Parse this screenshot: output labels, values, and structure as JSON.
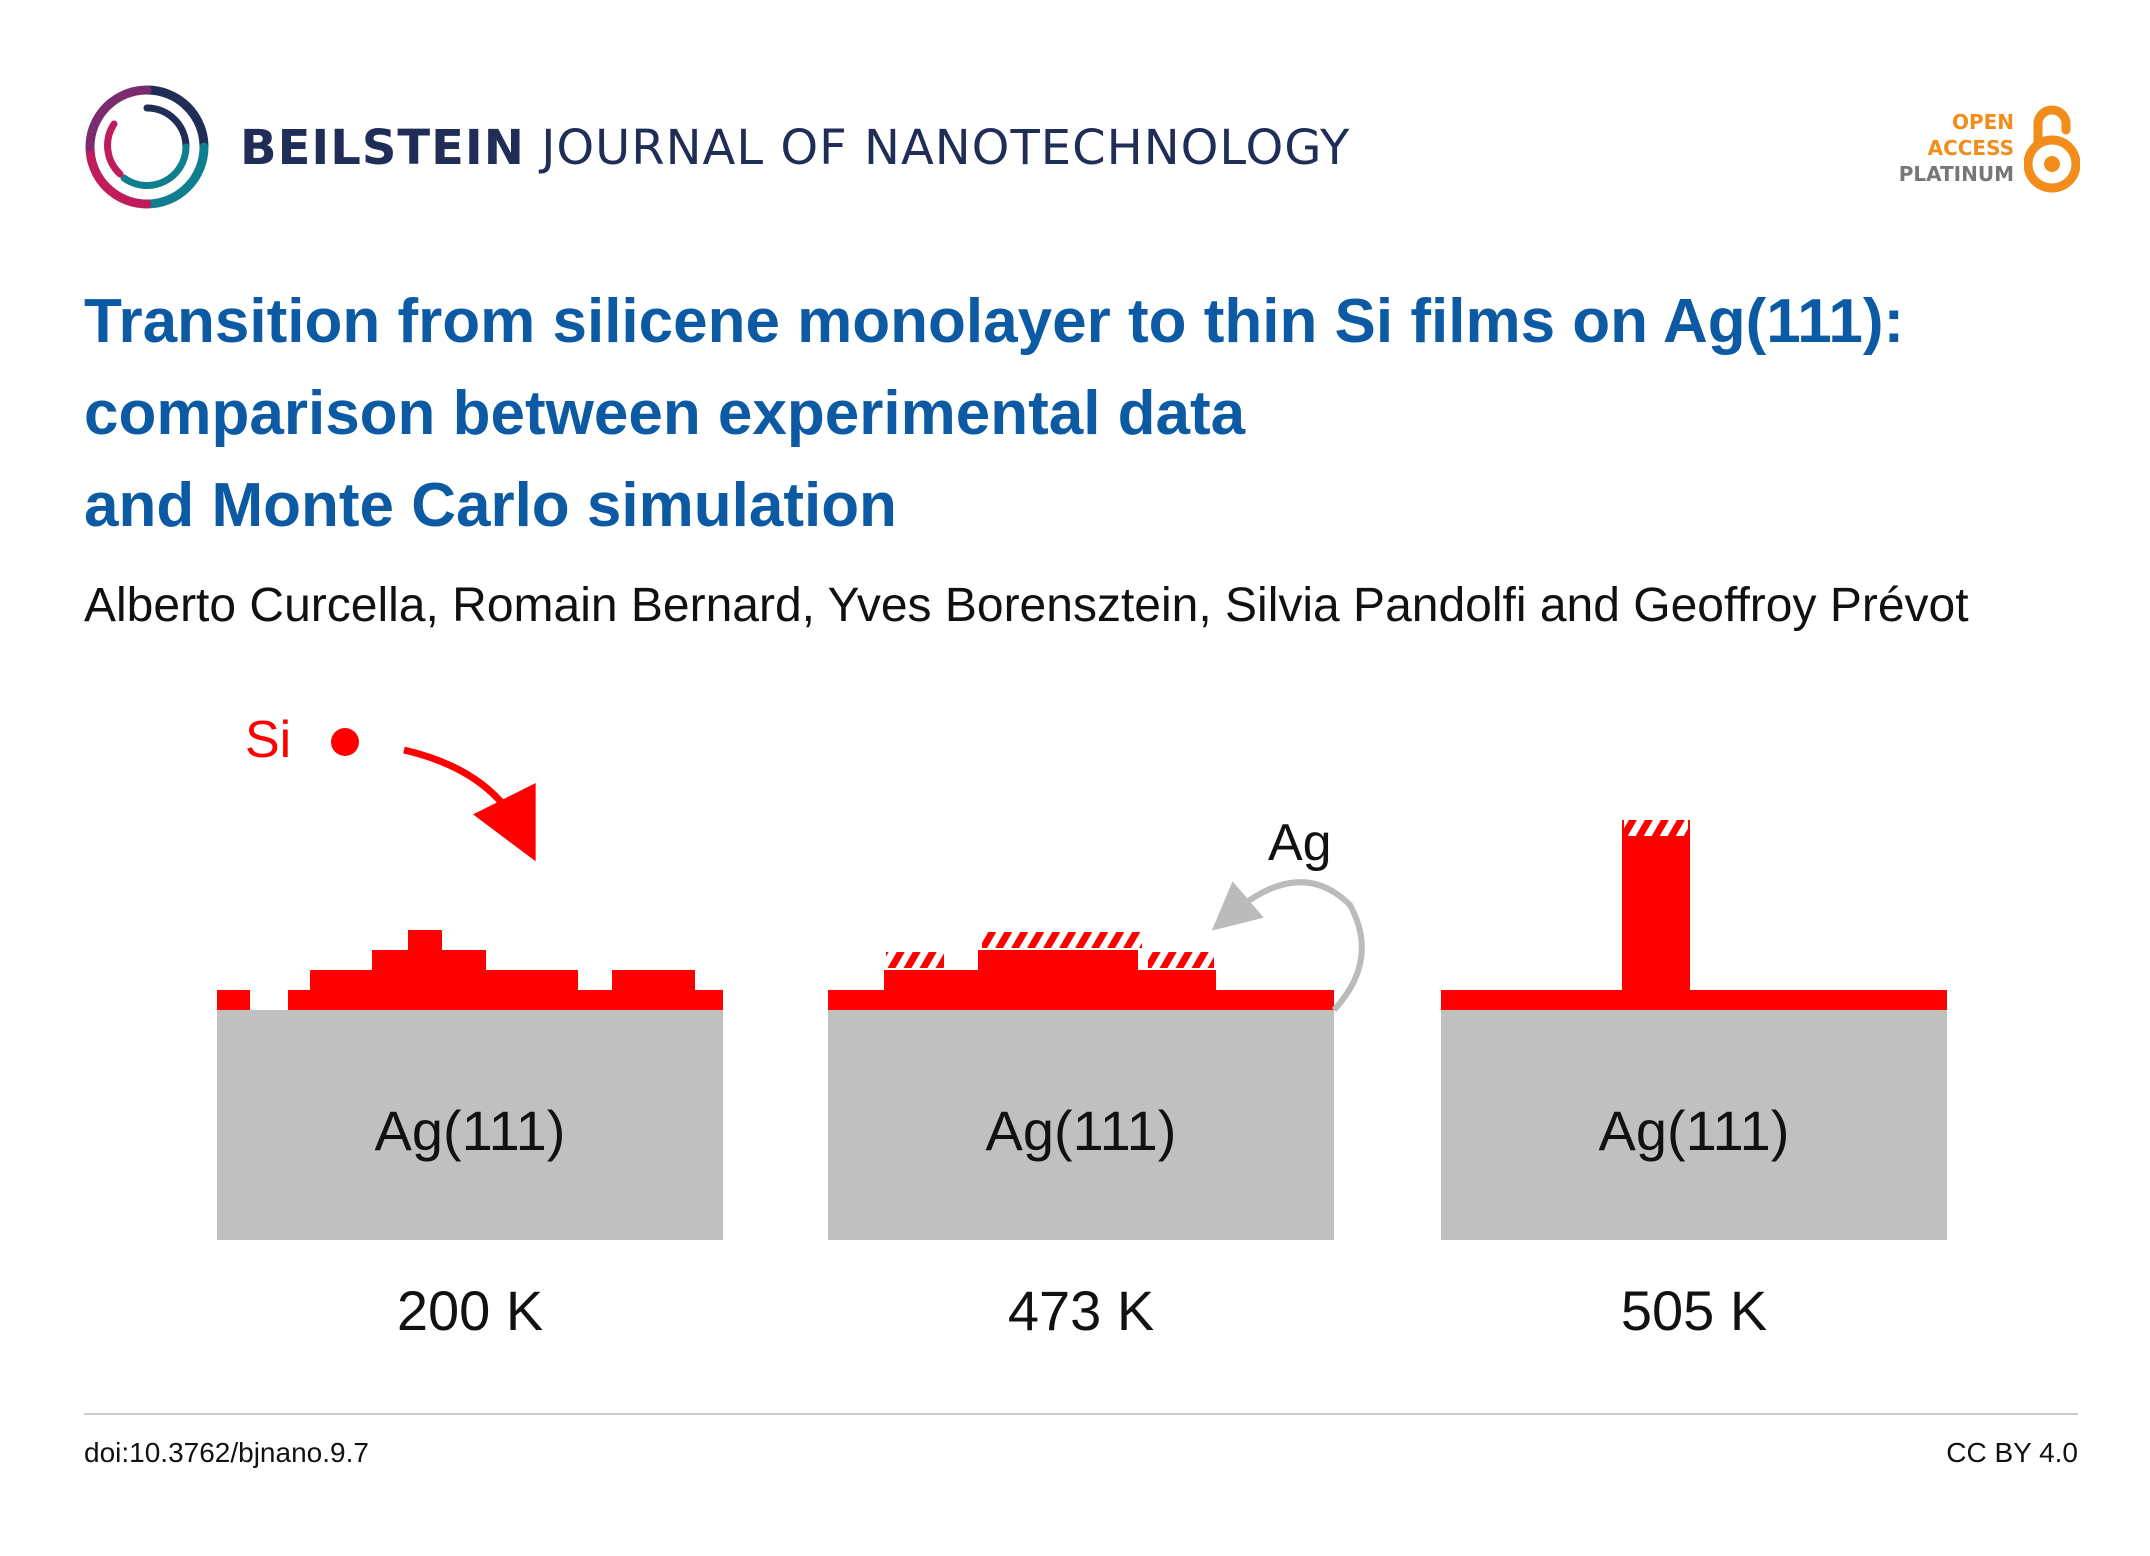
{
  "header": {
    "journal_bold": "BEILSTEIN",
    "journal_rest": "JOURNAL OF NANOTECHNOLOGY",
    "oa_line1": "OPEN",
    "oa_line2": "ACCESS",
    "oa_line3": "PLATINUM",
    "logo_icon": "beilstein-ring-logo",
    "oa_icon": "open-access-lock-icon",
    "colors": {
      "title": "#0b5aa3",
      "journal": "#1f2d57",
      "oa_orange": "#f28c1b"
    }
  },
  "article": {
    "title_lines": [
      "Transition from silicene monolayer to thin Si films on Ag(111):",
      "comparison between experimental data",
      "and Monte Carlo simulation"
    ],
    "authors": "Alberto Curcella, Romain Bernard, Yves Borensztein, Silvia Pandolfi and Geoffroy Prévot"
  },
  "figure": {
    "si_label": "Si",
    "ag_label": "Ag",
    "panels": [
      {
        "substrate": "Ag(111)",
        "temperature": "200 K"
      },
      {
        "substrate": "Ag(111)",
        "temperature": "473 K"
      },
      {
        "substrate": "Ag(111)",
        "temperature": "505 K"
      }
    ],
    "colors": {
      "silicon": "#ff0000",
      "substrate": "#c0c0c0",
      "arrow_gray": "#bbbbbb"
    }
  },
  "footer": {
    "doi": "doi:10.3762/bjnano.9.7",
    "license": "CC BY 4.0"
  }
}
